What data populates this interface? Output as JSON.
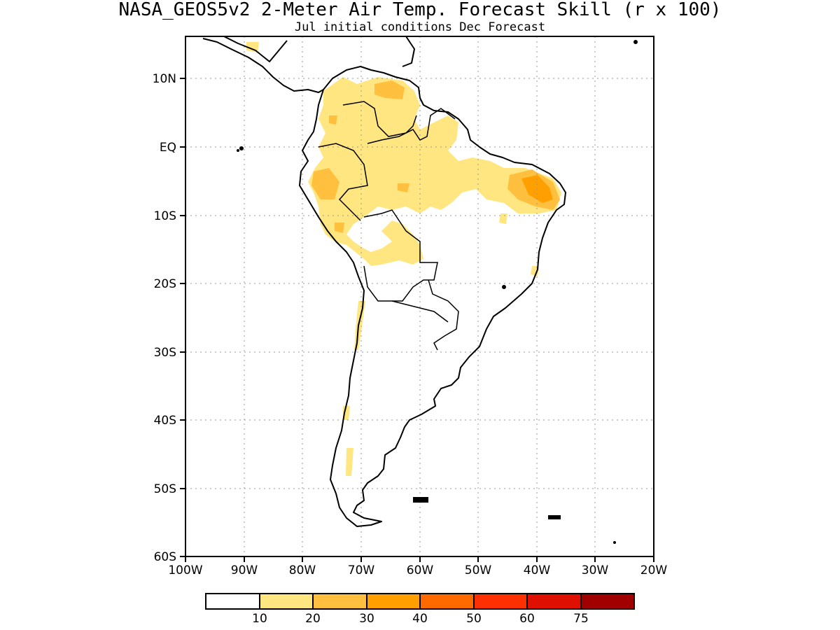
{
  "title": "NASA_GEOS5v2 2-Meter Air Temp. Forecast Skill (r x 100)",
  "subtitle": "Jul initial conditions  Dec Forecast",
  "lat_labels": [
    "10N",
    "EQ",
    "10S",
    "20S",
    "30S",
    "40S",
    "50S",
    "60S"
  ],
  "lon_labels": [
    "100W",
    "90W",
    "80W",
    "70W",
    "60W",
    "50W",
    "40W",
    "30W",
    "20W"
  ],
  "colorbar": {
    "labels": [
      "10",
      "20",
      "30",
      "40",
      "50",
      "60",
      "75"
    ],
    "colors": [
      "#ffffff",
      "#ffe680",
      "#ffbf3f",
      "#ffa000",
      "#ff6a00",
      "#ff3000",
      "#e01000",
      "#a00000"
    ]
  },
  "map": {
    "lon_range": [
      -100,
      -20
    ],
    "lat_range": [
      -60,
      14
    ],
    "grid": true,
    "land_outline_color": "#000000"
  }
}
